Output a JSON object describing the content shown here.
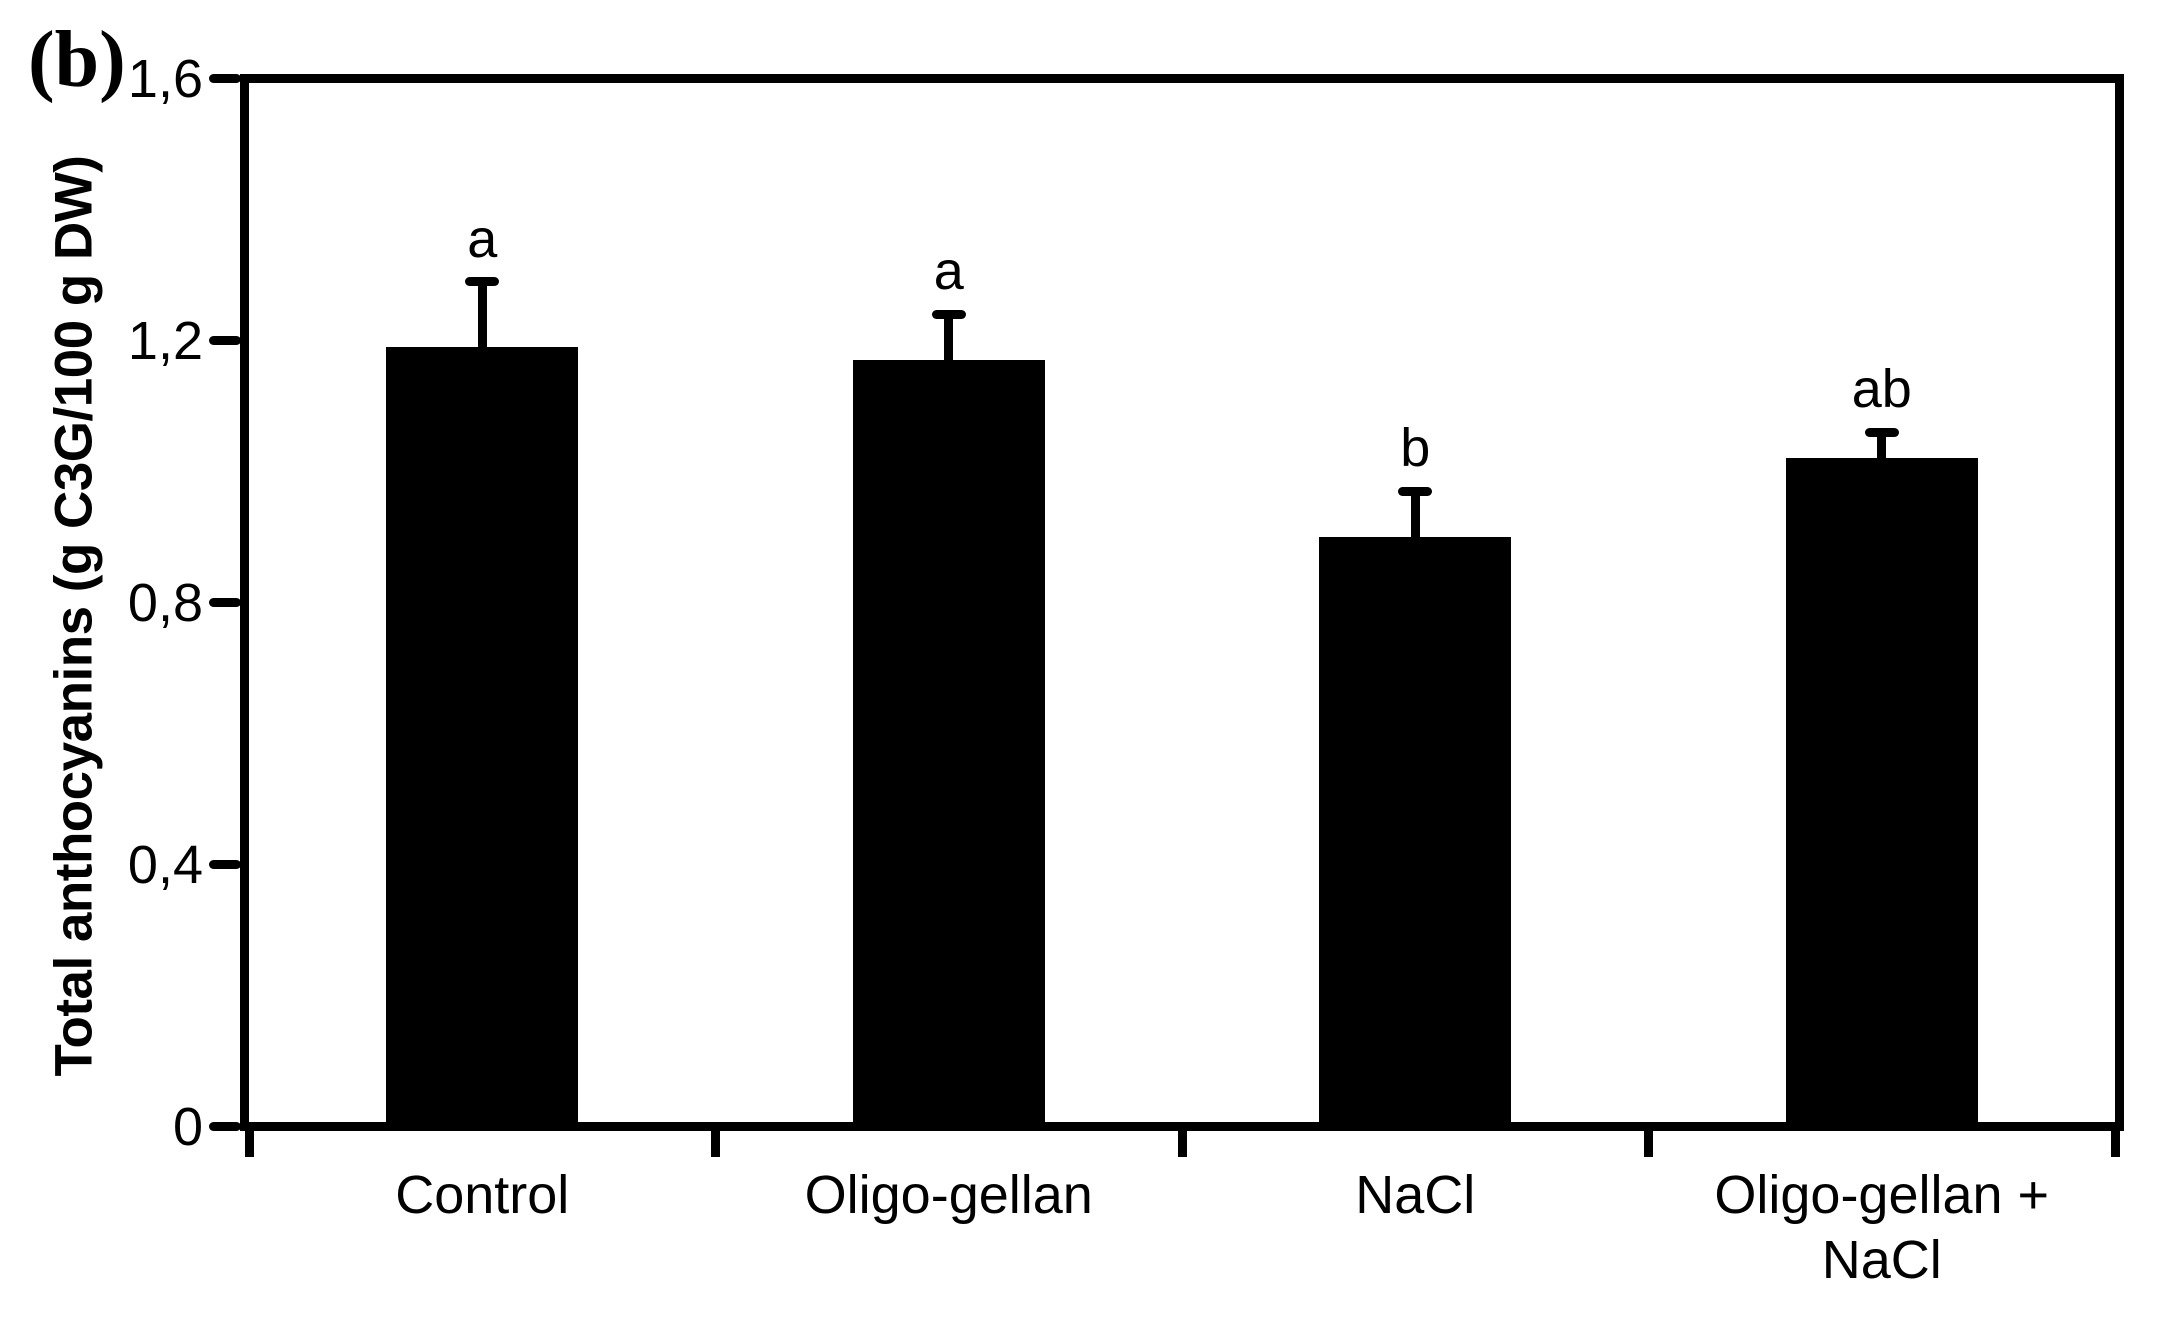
{
  "panel_label": "(b)",
  "chart_data": {
    "type": "bar",
    "title": "",
    "xlabel": "",
    "ylabel": "Total anthocyanins (g C3G/100 g DW)",
    "ylim": [
      0,
      1.6
    ],
    "yticks": [
      0,
      0.4,
      0.8,
      1.2,
      1.6
    ],
    "ytick_labels": [
      "0",
      "0,4",
      "0,8",
      "1,2",
      "1,6"
    ],
    "decimal_separator": ",",
    "grid": false,
    "legend": null,
    "bar_color": "#000000",
    "background_color": "#ffffff",
    "categories": [
      "Control",
      "Oligo-gellan",
      "NaCl",
      "Oligo-gellan +\nNaCl"
    ],
    "values": [
      1.19,
      1.17,
      0.9,
      1.02
    ],
    "errors_plus": [
      0.1,
      0.07,
      0.07,
      0.04
    ],
    "sig_letters": [
      "a",
      "a",
      "b",
      "ab"
    ]
  }
}
